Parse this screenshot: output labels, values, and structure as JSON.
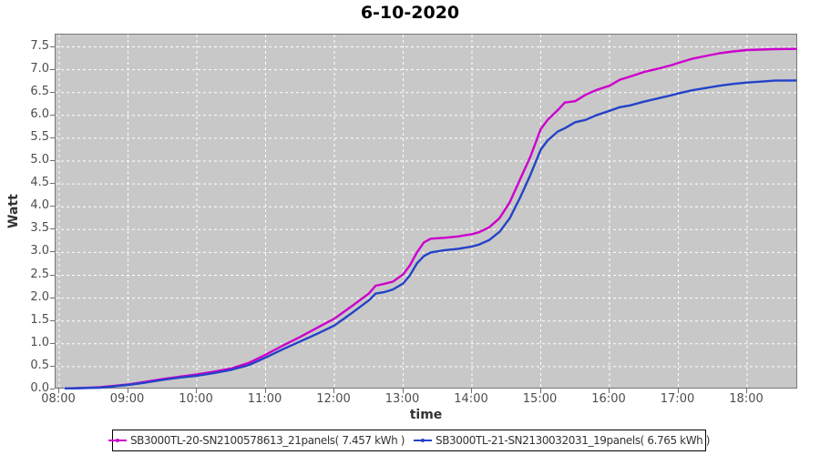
{
  "title": "6-10-2020",
  "axes": {
    "y_label": "Watt",
    "x_label": "time"
  },
  "legend": {
    "items": [
      {
        "label": "SB3000TL-20-SN2100578613_21panels( 7.457 kWh )",
        "color": "#cc00cc"
      },
      {
        "label": "SB3000TL-21-SN2130032031_19panels( 6.765 kWh )",
        "color": "#2442c8"
      }
    ]
  },
  "colors": {
    "plot_background": "#c8c8c8",
    "grid": "#ffffff",
    "plot_border": "#777777",
    "tick_text": "#4d4d4d",
    "series_magenta": "#cc00cc",
    "series_blue": "#2442c8"
  },
  "chart_data": {
    "type": "line",
    "title": "6-10-2020",
    "xlabel": "time",
    "ylabel": "Watt",
    "xlim": [
      7.95,
      18.74
    ],
    "ylim": [
      0,
      7.77
    ],
    "grid": true,
    "legend_position": "bottom",
    "x_ticks": [
      {
        "label": "08:00",
        "hour": 8
      },
      {
        "label": "09:00",
        "hour": 9
      },
      {
        "label": "10:00",
        "hour": 10
      },
      {
        "label": "11:00",
        "hour": 11
      },
      {
        "label": "12:00",
        "hour": 12
      },
      {
        "label": "13:00",
        "hour": 13
      },
      {
        "label": "14:00",
        "hour": 14
      },
      {
        "label": "15:00",
        "hour": 15
      },
      {
        "label": "16:00",
        "hour": 16
      },
      {
        "label": "17:00",
        "hour": 17
      },
      {
        "label": "18:00",
        "hour": 18
      }
    ],
    "y_ticks": [
      {
        "label": "0.0",
        "value": 0.0
      },
      {
        "label": "0.5",
        "value": 0.5
      },
      {
        "label": "1.0",
        "value": 1.0
      },
      {
        "label": "1.5",
        "value": 1.5
      },
      {
        "label": "2.0",
        "value": 2.0
      },
      {
        "label": "2.5",
        "value": 2.5
      },
      {
        "label": "3.0",
        "value": 3.0
      },
      {
        "label": "3.5",
        "value": 3.5
      },
      {
        "label": "4.0",
        "value": 4.0
      },
      {
        "label": "4.5",
        "value": 4.5
      },
      {
        "label": "5.0",
        "value": 5.0
      },
      {
        "label": "5.5",
        "value": 5.5
      },
      {
        "label": "6.0",
        "value": 6.0
      },
      {
        "label": "6.5",
        "value": 6.5
      },
      {
        "label": "7.0",
        "value": 7.0
      },
      {
        "label": "7.5",
        "value": 7.5
      }
    ],
    "series": [
      {
        "name": "SB3000TL-20-SN2100578613_21panels( 7.457 kWh )",
        "color": "#cc00cc",
        "total_kwh": 7.457,
        "points": [
          [
            8.08,
            0.02
          ],
          [
            8.3,
            0.03
          ],
          [
            8.6,
            0.05
          ],
          [
            8.8,
            0.08
          ],
          [
            9.0,
            0.11
          ],
          [
            9.25,
            0.17
          ],
          [
            9.5,
            0.23
          ],
          [
            9.75,
            0.28
          ],
          [
            10.0,
            0.33
          ],
          [
            10.25,
            0.39
          ],
          [
            10.5,
            0.46
          ],
          [
            10.75,
            0.58
          ],
          [
            11.0,
            0.76
          ],
          [
            11.25,
            0.96
          ],
          [
            11.5,
            1.15
          ],
          [
            11.75,
            1.35
          ],
          [
            12.0,
            1.55
          ],
          [
            12.25,
            1.82
          ],
          [
            12.5,
            2.1
          ],
          [
            12.6,
            2.27
          ],
          [
            12.72,
            2.31
          ],
          [
            12.85,
            2.36
          ],
          [
            13.0,
            2.52
          ],
          [
            13.1,
            2.72
          ],
          [
            13.2,
            3.0
          ],
          [
            13.3,
            3.22
          ],
          [
            13.4,
            3.3
          ],
          [
            13.6,
            3.32
          ],
          [
            13.8,
            3.35
          ],
          [
            14.0,
            3.4
          ],
          [
            14.1,
            3.44
          ],
          [
            14.25,
            3.55
          ],
          [
            14.4,
            3.75
          ],
          [
            14.55,
            4.1
          ],
          [
            14.7,
            4.6
          ],
          [
            14.85,
            5.1
          ],
          [
            15.0,
            5.7
          ],
          [
            15.1,
            5.9
          ],
          [
            15.25,
            6.12
          ],
          [
            15.35,
            6.28
          ],
          [
            15.5,
            6.31
          ],
          [
            15.65,
            6.45
          ],
          [
            15.8,
            6.55
          ],
          [
            16.0,
            6.65
          ],
          [
            16.15,
            6.78
          ],
          [
            16.3,
            6.85
          ],
          [
            16.5,
            6.95
          ],
          [
            16.7,
            7.02
          ],
          [
            16.9,
            7.1
          ],
          [
            17.0,
            7.15
          ],
          [
            17.2,
            7.24
          ],
          [
            17.4,
            7.3
          ],
          [
            17.6,
            7.36
          ],
          [
            17.8,
            7.4
          ],
          [
            18.0,
            7.43
          ],
          [
            18.2,
            7.44
          ],
          [
            18.4,
            7.45
          ],
          [
            18.72,
            7.457
          ]
        ]
      },
      {
        "name": "SB3000TL-21-SN2130032031_19panels( 6.765 kWh )",
        "color": "#2442c8",
        "total_kwh": 6.765,
        "points": [
          [
            8.08,
            0.02
          ],
          [
            8.3,
            0.03
          ],
          [
            8.6,
            0.04
          ],
          [
            8.8,
            0.07
          ],
          [
            9.0,
            0.1
          ],
          [
            9.25,
            0.15
          ],
          [
            9.5,
            0.21
          ],
          [
            9.75,
            0.26
          ],
          [
            10.0,
            0.3
          ],
          [
            10.25,
            0.36
          ],
          [
            10.5,
            0.43
          ],
          [
            10.75,
            0.53
          ],
          [
            11.0,
            0.7
          ],
          [
            11.25,
            0.88
          ],
          [
            11.5,
            1.05
          ],
          [
            11.75,
            1.22
          ],
          [
            12.0,
            1.4
          ],
          [
            12.25,
            1.67
          ],
          [
            12.5,
            1.95
          ],
          [
            12.6,
            2.1
          ],
          [
            12.72,
            2.13
          ],
          [
            12.85,
            2.19
          ],
          [
            13.0,
            2.32
          ],
          [
            13.1,
            2.5
          ],
          [
            13.2,
            2.76
          ],
          [
            13.3,
            2.92
          ],
          [
            13.4,
            3.0
          ],
          [
            13.6,
            3.05
          ],
          [
            13.8,
            3.08
          ],
          [
            14.0,
            3.13
          ],
          [
            14.1,
            3.17
          ],
          [
            14.25,
            3.27
          ],
          [
            14.4,
            3.45
          ],
          [
            14.55,
            3.75
          ],
          [
            14.7,
            4.2
          ],
          [
            14.85,
            4.7
          ],
          [
            15.0,
            5.25
          ],
          [
            15.1,
            5.45
          ],
          [
            15.25,
            5.65
          ],
          [
            15.35,
            5.72
          ],
          [
            15.5,
            5.85
          ],
          [
            15.65,
            5.9
          ],
          [
            15.8,
            6.0
          ],
          [
            16.0,
            6.1
          ],
          [
            16.15,
            6.18
          ],
          [
            16.3,
            6.22
          ],
          [
            16.5,
            6.3
          ],
          [
            16.7,
            6.37
          ],
          [
            16.9,
            6.44
          ],
          [
            17.0,
            6.48
          ],
          [
            17.2,
            6.55
          ],
          [
            17.4,
            6.6
          ],
          [
            17.6,
            6.65
          ],
          [
            17.8,
            6.69
          ],
          [
            18.0,
            6.72
          ],
          [
            18.2,
            6.74
          ],
          [
            18.4,
            6.76
          ],
          [
            18.72,
            6.765
          ]
        ]
      }
    ]
  }
}
